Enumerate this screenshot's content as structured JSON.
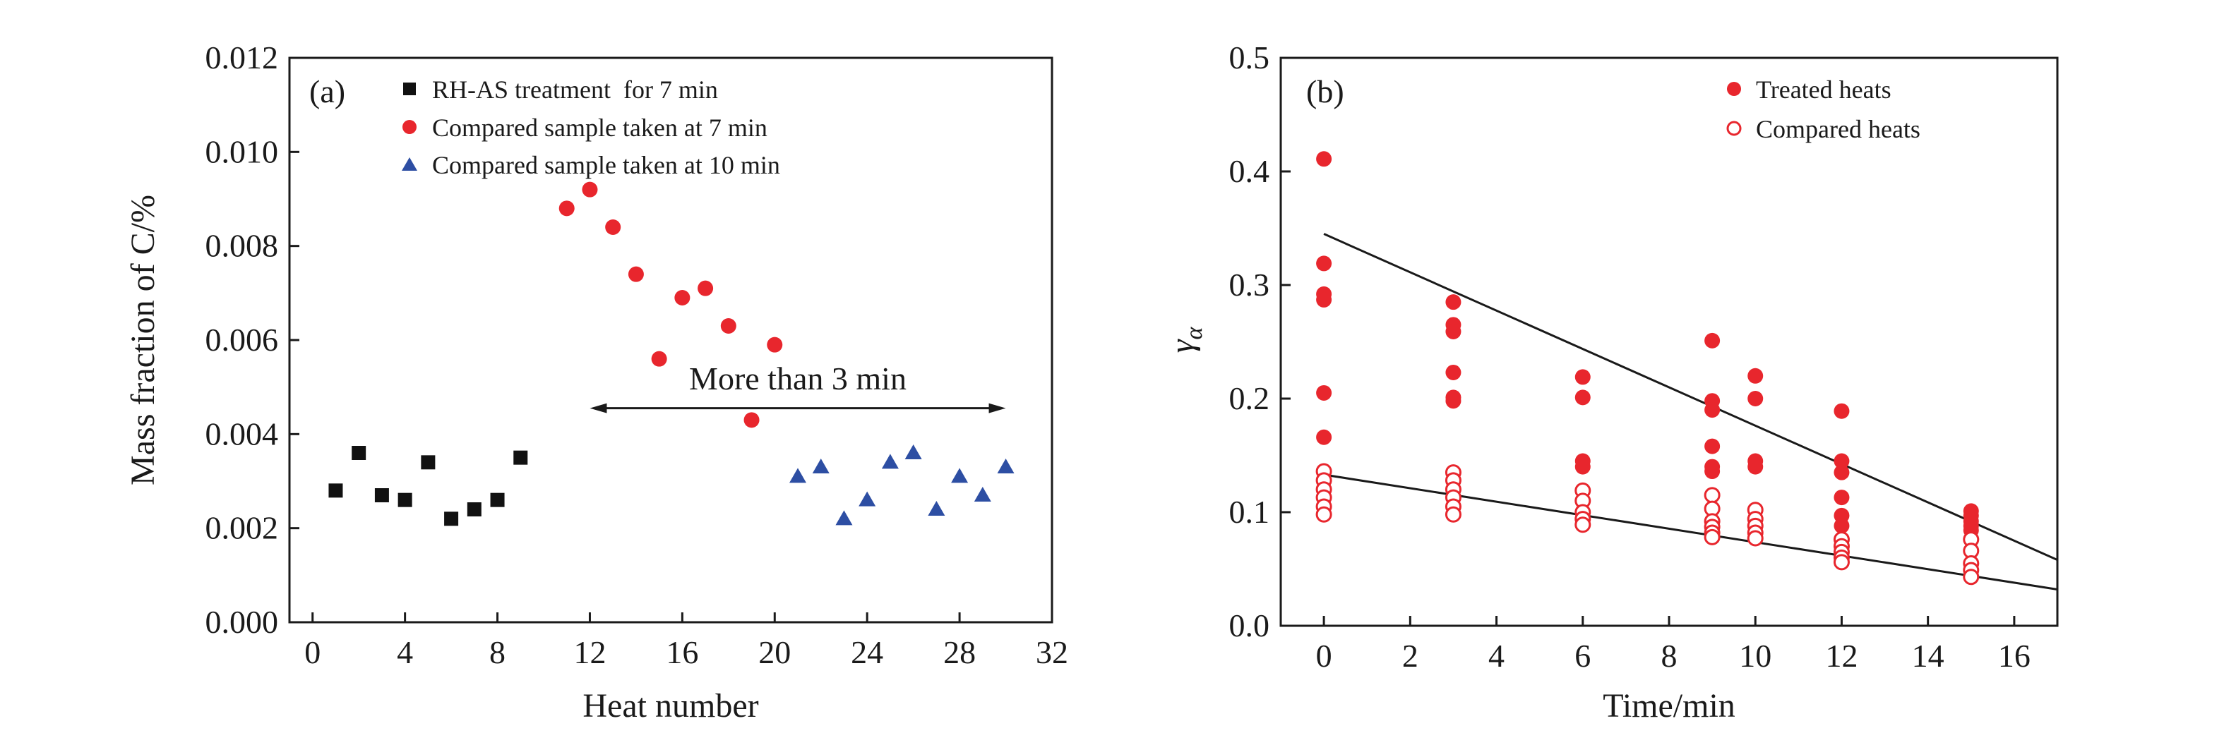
{
  "chart_data": [
    {
      "type": "scatter",
      "panel_label": "(a)",
      "xlabel": "Heat number",
      "ylabel": "Mass fraction of C/%",
      "xlim": [
        -1,
        32
      ],
      "ylim": [
        0,
        0.012
      ],
      "xticks": [
        0,
        4,
        8,
        12,
        16,
        20,
        24,
        28,
        32
      ],
      "xtick_labels": [
        "0",
        "4",
        "8",
        "12",
        "16",
        "20",
        "24",
        "28",
        "32"
      ],
      "yticks": [
        0,
        0.002,
        0.004,
        0.006,
        0.008,
        0.01,
        0.012
      ],
      "ytick_labels": [
        "0.000",
        "0.002",
        "0.004",
        "0.006",
        "0.008",
        "0.010",
        "0.012"
      ],
      "grid": false,
      "legend_position": "top-left",
      "series": [
        {
          "name": "RH-AS treatment  for 7 min",
          "marker": "square",
          "color": "#111111",
          "points": [
            [
              1,
              0.0028
            ],
            [
              2,
              0.0036
            ],
            [
              3,
              0.0027
            ],
            [
              4,
              0.0026
            ],
            [
              5,
              0.0034
            ],
            [
              6,
              0.0022
            ],
            [
              7,
              0.0024
            ],
            [
              8,
              0.0026
            ],
            [
              9,
              0.0035
            ]
          ]
        },
        {
          "name": "Compared sample taken at 7 min",
          "marker": "circle",
          "color": "#e8262d",
          "points": [
            [
              11,
              0.0088
            ],
            [
              12,
              0.0092
            ],
            [
              13,
              0.0084
            ],
            [
              14,
              0.0074
            ],
            [
              15,
              0.0056
            ],
            [
              16,
              0.0069
            ],
            [
              17,
              0.0071
            ],
            [
              18,
              0.0063
            ],
            [
              19,
              0.0043
            ],
            [
              20,
              0.0059
            ]
          ]
        },
        {
          "name": "Compared sample taken at 10 min",
          "marker": "triangle",
          "color": "#2d4ea3",
          "points": [
            [
              21,
              0.0031
            ],
            [
              22,
              0.0033
            ],
            [
              23,
              0.0022
            ],
            [
              24,
              0.0026
            ],
            [
              25,
              0.0034
            ],
            [
              26,
              0.0036
            ],
            [
              27,
              0.0024
            ],
            [
              28,
              0.0031
            ],
            [
              29,
              0.0027
            ],
            [
              30,
              0.0033
            ]
          ]
        }
      ],
      "annotation": {
        "text": "More than 3 min",
        "arrow_from": [
          12,
          0.00455
        ],
        "arrow_to": [
          30,
          0.00455
        ],
        "text_anchor": [
          21,
          0.00495
        ]
      }
    },
    {
      "type": "scatter",
      "panel_label": "(b)",
      "xlabel": "Time/min",
      "ylabel": "γα",
      "ylabel_main": "γ",
      "ylabel_sub": "α",
      "xlim": [
        -1,
        17
      ],
      "ylim": [
        0,
        0.5
      ],
      "xticks": [
        0,
        2,
        4,
        6,
        8,
        10,
        12,
        14,
        16
      ],
      "xtick_labels": [
        "0",
        "2",
        "4",
        "6",
        "8",
        "10",
        "12",
        "14",
        "16"
      ],
      "yticks": [
        0,
        0.1,
        0.2,
        0.3,
        0.4,
        0.5
      ],
      "ytick_labels": [
        "0.0",
        "0.1",
        "0.2",
        "0.3",
        "0.4",
        "0.5"
      ],
      "grid": false,
      "legend_position": "top-right",
      "series": [
        {
          "name": "Treated heats",
          "marker": "filled-circle",
          "color": "#e8262d",
          "points": [
            [
              0,
              0.411
            ],
            [
              0,
              0.319
            ],
            [
              0,
              0.292
            ],
            [
              0,
              0.287
            ],
            [
              0,
              0.205
            ],
            [
              0,
              0.166
            ],
            [
              3,
              0.285
            ],
            [
              3,
              0.265
            ],
            [
              3,
              0.259
            ],
            [
              3,
              0.223
            ],
            [
              3,
              0.201
            ],
            [
              3,
              0.198
            ],
            [
              6,
              0.219
            ],
            [
              6,
              0.201
            ],
            [
              6,
              0.145
            ],
            [
              6,
              0.14
            ],
            [
              9,
              0.251
            ],
            [
              9,
              0.198
            ],
            [
              9,
              0.19
            ],
            [
              9,
              0.158
            ],
            [
              9,
              0.14
            ],
            [
              9,
              0.136
            ],
            [
              10,
              0.22
            ],
            [
              10,
              0.2
            ],
            [
              10,
              0.145
            ],
            [
              10,
              0.14
            ],
            [
              12,
              0.189
            ],
            [
              12,
              0.145
            ],
            [
              12,
              0.135
            ],
            [
              12,
              0.113
            ],
            [
              12,
              0.097
            ],
            [
              12,
              0.088
            ],
            [
              15,
              0.101
            ],
            [
              15,
              0.097
            ],
            [
              15,
              0.092
            ],
            [
              15,
              0.088
            ],
            [
              15,
              0.084
            ]
          ]
        },
        {
          "name": "Compared heats",
          "marker": "open-circle",
          "color": "#e8262d",
          "points": [
            [
              0,
              0.136
            ],
            [
              0,
              0.128
            ],
            [
              0,
              0.12
            ],
            [
              0,
              0.113
            ],
            [
              0,
              0.105
            ],
            [
              0,
              0.098
            ],
            [
              3,
              0.135
            ],
            [
              3,
              0.128
            ],
            [
              3,
              0.12
            ],
            [
              3,
              0.113
            ],
            [
              3,
              0.105
            ],
            [
              3,
              0.098
            ],
            [
              6,
              0.119
            ],
            [
              6,
              0.11
            ],
            [
              6,
              0.1
            ],
            [
              6,
              0.094
            ],
            [
              6,
              0.089
            ],
            [
              9,
              0.115
            ],
            [
              9,
              0.103
            ],
            [
              9,
              0.092
            ],
            [
              9,
              0.087
            ],
            [
              9,
              0.082
            ],
            [
              9,
              0.078
            ],
            [
              10,
              0.102
            ],
            [
              10,
              0.094
            ],
            [
              10,
              0.088
            ],
            [
              10,
              0.082
            ],
            [
              10,
              0.077
            ],
            [
              12,
              0.076
            ],
            [
              12,
              0.07
            ],
            [
              12,
              0.065
            ],
            [
              12,
              0.06
            ],
            [
              12,
              0.056
            ],
            [
              15,
              0.076
            ],
            [
              15,
              0.066
            ],
            [
              15,
              0.055
            ],
            [
              15,
              0.049
            ],
            [
              15,
              0.043
            ]
          ]
        }
      ],
      "fit_lines": [
        {
          "x": [
            0,
            17
          ],
          "y": [
            0.345,
            0.058
          ]
        },
        {
          "x": [
            0,
            17
          ],
          "y": [
            0.133,
            0.032
          ]
        }
      ]
    }
  ]
}
